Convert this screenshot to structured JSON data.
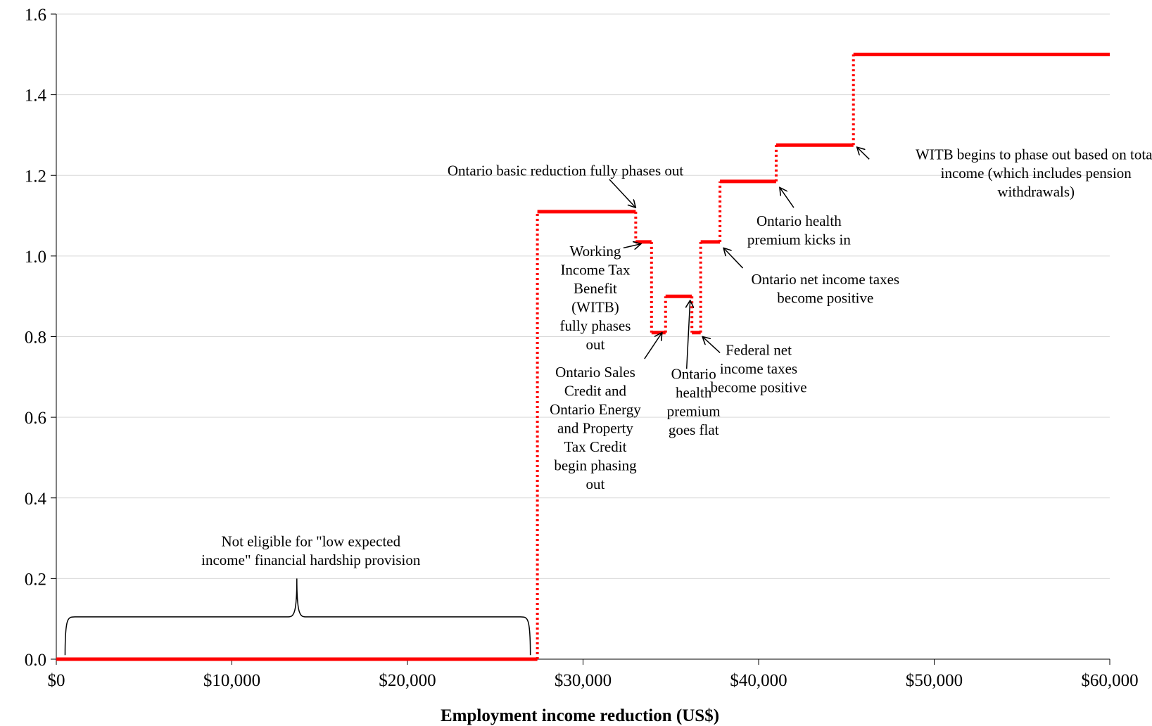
{
  "chart_data": {
    "type": "line",
    "title": "",
    "xlabel": "Employment income reduction (US$)",
    "ylabel": "",
    "xlim": [
      0,
      60000
    ],
    "ylim": [
      0,
      1.6
    ],
    "x_ticks": [
      0,
      10000,
      20000,
      30000,
      40000,
      50000,
      60000
    ],
    "x_tick_labels": [
      "$0",
      "$10,000",
      "$20,000",
      "$30,000",
      "$40,000",
      "$50,000",
      "$60,000"
    ],
    "y_ticks": [
      0,
      0.2,
      0.4,
      0.6,
      0.8,
      1.0,
      1.2,
      1.4,
      1.6
    ],
    "y_tick_labels": [
      "0.0",
      "0.2",
      "0.4",
      "0.6",
      "0.8",
      "1.0",
      "1.2",
      "1.4",
      "1.6"
    ],
    "grid": "horizontal",
    "series_color": "#ff0000",
    "series": [
      {
        "name": "",
        "steps": [
          {
            "x0": 0,
            "x1": 27400,
            "y": 0.0
          },
          {
            "x0": 27400,
            "x1": 33000,
            "y": 1.11
          },
          {
            "x0": 33000,
            "x1": 33900,
            "y": 1.035
          },
          {
            "x0": 33900,
            "x1": 34700,
            "y": 0.81
          },
          {
            "x0": 34700,
            "x1": 36200,
            "y": 0.9
          },
          {
            "x0": 36200,
            "x1": 36700,
            "y": 0.81
          },
          {
            "x0": 36700,
            "x1": 37800,
            "y": 1.035
          },
          {
            "x0": 37800,
            "x1": 41000,
            "y": 1.185
          },
          {
            "x0": 41000,
            "x1": 45400,
            "y": 1.275
          },
          {
            "x0": 45400,
            "x1": 60000,
            "y": 1.5
          }
        ]
      }
    ],
    "brace": {
      "x0": 500,
      "x1": 27000,
      "y_bottom": 0.01,
      "y_top": 0.105,
      "y_tip": 0.2,
      "x_tip": 13700
    },
    "annotations": [
      {
        "id": "not-eligible",
        "lines": [
          "Not eligible for \"low expected",
          "income\" financial hardship provision"
        ],
        "x": 14500,
        "y": 0.28,
        "anchor": "middle"
      },
      {
        "id": "ontario-basic-reduction",
        "lines": [
          "Ontario basic reduction fully phases out"
        ],
        "x": 29000,
        "y": 1.2,
        "anchor": "middle",
        "arrow": {
          "from": [
            31500,
            1.19
          ],
          "to": [
            33000,
            1.12
          ]
        }
      },
      {
        "id": "witb-fully-phases-out",
        "lines": [
          "Working",
          "Income Tax",
          "Benefit",
          "(WITB)",
          "fully phases",
          "out"
        ],
        "x": 30700,
        "y": 1.0,
        "anchor": "middle",
        "arrow": {
          "from": [
            32300,
            1.02
          ],
          "to": [
            33300,
            1.03
          ]
        }
      },
      {
        "id": "ontario-sales-credit",
        "lines": [
          "Ontario Sales",
          "Credit and",
          "Ontario Energy",
          "and Property",
          "Tax Credit",
          "begin phasing",
          "out"
        ],
        "x": 30700,
        "y": 0.7,
        "anchor": "middle",
        "arrow": {
          "from": [
            33500,
            0.745
          ],
          "to": [
            34500,
            0.81
          ]
        }
      },
      {
        "id": "ontario-health-flat",
        "lines": [
          "Ontario",
          "health",
          "premium",
          "goes flat"
        ],
        "x": 36300,
        "y": 0.695,
        "anchor": "middle",
        "arrow": {
          "from": [
            35900,
            0.72
          ],
          "to": [
            36100,
            0.89
          ]
        }
      },
      {
        "id": "federal-net-income",
        "lines": [
          "Federal net",
          "income taxes",
          "become positive"
        ],
        "x": 40000,
        "y": 0.755,
        "anchor": "middle",
        "arrow": {
          "from": [
            37800,
            0.76
          ],
          "to": [
            36800,
            0.8
          ]
        }
      },
      {
        "id": "ontario-net-income",
        "lines": [
          "Ontario net income taxes",
          "become positive"
        ],
        "x": 43800,
        "y": 0.93,
        "anchor": "middle",
        "arrow": {
          "from": [
            39100,
            0.97
          ],
          "to": [
            38000,
            1.02
          ]
        }
      },
      {
        "id": "ontario-health-kicks-in",
        "lines": [
          "Ontario health",
          "premium kicks in"
        ],
        "x": 42300,
        "y": 1.075,
        "anchor": "middle",
        "arrow": {
          "from": [
            42000,
            1.12
          ],
          "to": [
            41200,
            1.17
          ]
        }
      },
      {
        "id": "witb-phase-out-total",
        "lines": [
          "WITB begins to phase out based on total",
          "income (which includes pension",
          "withdrawals)"
        ],
        "x": 55800,
        "y": 1.24,
        "anchor": "middle",
        "arrow": {
          "from": [
            46300,
            1.24
          ],
          "to": [
            45600,
            1.27
          ]
        }
      }
    ]
  }
}
